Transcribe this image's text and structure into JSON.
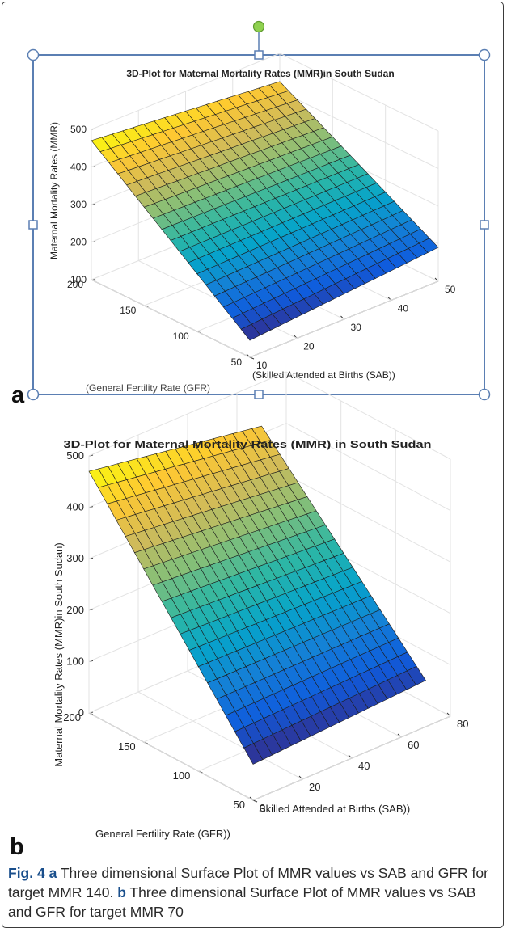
{
  "figure": {
    "panel_a_letter": "a",
    "panel_b_letter": "b",
    "caption": {
      "fig_label": "Fig. 4",
      "a_letter": "a",
      "a_text": " Three dimensional Surface Plot of MMR values vs SAB and GFR for target MMR 140. ",
      "b_letter": "b",
      "b_text": " Three dimensional Surface Plot of MMR values vs SAB and GFR for target MMR 70"
    }
  },
  "colors": {
    "selection_box": "#5b7fb3",
    "handle_fill": "#ffffff",
    "rotate_handle": "#8fd14f",
    "colormap": [
      "#352a87",
      "#0f5cdd",
      "#1481d6",
      "#06a4ca",
      "#2eb7a4",
      "#87bf77",
      "#d1bb59",
      "#fec832",
      "#f9fb0e"
    ]
  },
  "chart_data": [
    {
      "type": "surface",
      "title": "3D-Plot for Maternal Mortality Rates (MMR)in South Sudan",
      "xlabel": "(Skilled Attended at Births (SAB))",
      "ylabel": "(General Fertility Rate (GFR)",
      "zlabel": "Maternal Mortality Rates (MMR)",
      "xlim": [
        10,
        50
      ],
      "ylim": [
        50,
        200
      ],
      "zlim": [
        100,
        500
      ],
      "x_ticks": [
        "10",
        "20",
        "30",
        "40",
        "50"
      ],
      "y_ticks": [
        "50",
        "100",
        "150",
        "200"
      ],
      "z_ticks": [
        "100",
        "200",
        "300",
        "400",
        "500"
      ],
      "grid": true,
      "colormap": "parula",
      "corners": [
        {
          "x": 10,
          "y": 200,
          "z": 470
        },
        {
          "x": 50,
          "y": 200,
          "z": 425
        },
        {
          "x": 50,
          "y": 50,
          "z": 190
        },
        {
          "x": 10,
          "y": 50,
          "z": 145
        }
      ]
    },
    {
      "type": "surface",
      "title": "3D-Plot for Maternal Mortality Rates (MMR) in South Sudan",
      "xlabel": "Skilled Attended at Births (SAB))",
      "ylabel": "General Fertility Rate (GFR))",
      "zlabel": "Maternal Mortality Rates (MMR)in South Sudan)",
      "xlim": [
        0,
        80
      ],
      "ylim": [
        50,
        200
      ],
      "zlim": [
        0,
        500
      ],
      "x_ticks": [
        "0",
        "20",
        "40",
        "60",
        "80"
      ],
      "y_ticks": [
        "50",
        "100",
        "150",
        "200"
      ],
      "z_ticks": [
        "0",
        "100",
        "200",
        "300",
        "400",
        "500"
      ],
      "grid": true,
      "colormap": "parula",
      "corners": [
        {
          "x": 0,
          "y": 200,
          "z": 470
        },
        {
          "x": 70,
          "y": 200,
          "z": 415
        },
        {
          "x": 70,
          "y": 50,
          "z": 90
        },
        {
          "x": 0,
          "y": 50,
          "z": 70
        }
      ]
    }
  ]
}
